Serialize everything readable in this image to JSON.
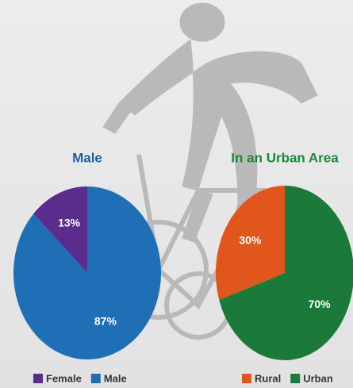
{
  "chart_data": [
    {
      "type": "pie",
      "title": "Male",
      "title_color": "#1f5f9e",
      "categories": [
        "Female",
        "Male"
      ],
      "values": [
        13,
        87
      ],
      "value_labels": [
        "13%",
        "87%"
      ],
      "colors": [
        "#5a2d8c",
        "#1f6fb6"
      ]
    },
    {
      "type": "pie",
      "title": "In an Urban Area",
      "title_color": "#1a8a3a",
      "categories": [
        "Rural",
        "Urban"
      ],
      "values": [
        30,
        70
      ],
      "value_labels": [
        "30%",
        "70%"
      ],
      "colors": [
        "#e0561c",
        "#1b7a3a"
      ]
    }
  ]
}
